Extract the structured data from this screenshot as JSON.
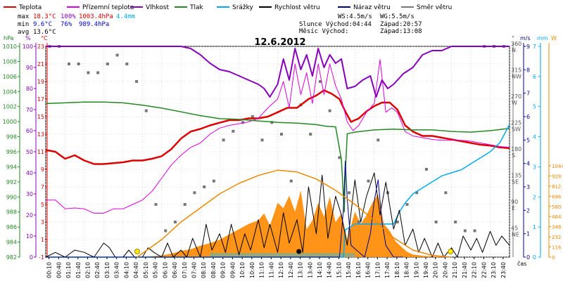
{
  "colors": {
    "temperature": "#dd0000",
    "feels_like": "#dd00dd",
    "humidity": "#8800bb",
    "pressure": "#228822",
    "rain": "#00aaee",
    "wind_speed": "#000000",
    "gust": "#000088",
    "wind_dir": "#777777",
    "sun": "#ee8800",
    "radiation_fill": "#ff8800",
    "uv_fill": "#88aa88",
    "date": "#000000"
  },
  "legend": [
    {
      "label": "Teplota",
      "color_key": "temperature"
    },
    {
      "label": "Přízemní teplota",
      "color_key": "feels_like"
    },
    {
      "label": "Vlhkost",
      "color_key": "humidity"
    },
    {
      "label": "Tlak",
      "color_key": "pressure"
    },
    {
      "label": "Srážky",
      "color_key": "rain"
    },
    {
      "label": "Rychlost větru",
      "color_key": "wind_speed"
    },
    {
      "label": "Náraz větru",
      "color_key": "gust"
    },
    {
      "label": "Směr větru",
      "color_key": "wind_dir"
    }
  ],
  "stats": {
    "max": {
      "label": "max",
      "temp": "18.3°C",
      "hum": "100%",
      "press": "1003.4hPa",
      "rain": "4.4mm"
    },
    "min": {
      "label": "min",
      "temp": "9.6°C",
      "hum": "76%",
      "press": "989.4hPa"
    },
    "avg": {
      "label": "avg",
      "temp": "13.6°C"
    }
  },
  "info": {
    "ws": "WS:4.5m/s",
    "wg": "WG:5.5m/s",
    "slunce": "Slunce Východ:04:44",
    "slunce_zapad": "Západ:20:57",
    "mesic": "Měsíc  Východ:",
    "mesic_zapad": "Západ:13:08"
  },
  "date": "12.6.2012",
  "axis_units": {
    "hpa": "hPa",
    "pct": "%",
    "degc": "°C",
    "deg": "°",
    "ms": "m/s",
    "mm": "mm",
    "wm2": "W",
    "time": "čas"
  },
  "chart_data": {
    "type": "line",
    "title": "12.6.2012",
    "xlabel": "čas",
    "x_ticks": [
      "00:10",
      "00:40",
      "01:10",
      "01:40",
      "02:10",
      "02:40",
      "03:10",
      "03:40",
      "04:10",
      "04:40",
      "05:10",
      "05:40",
      "06:10",
      "06:40",
      "07:10",
      "07:40",
      "08:10",
      "08:40",
      "09:10",
      "09:40",
      "10:10",
      "10:40",
      "11:10",
      "11:40",
      "12:10",
      "12:40",
      "13:10",
      "13:40",
      "14:10",
      "14:40",
      "15:10",
      "15:40",
      "16:10",
      "16:40",
      "17:10",
      "17:40",
      "18:10",
      "18:40",
      "19:10",
      "19:40",
      "20:10",
      "20:40",
      "21:10",
      "21:40",
      "22:10",
      "22:40",
      "23:10",
      "23:40"
    ],
    "axes": {
      "pressure_hpa": {
        "min": 982,
        "max": 1010,
        "ticks": [
          982,
          984,
          986,
          988,
          990,
          992,
          994,
          996,
          998,
          1000,
          1002,
          1004,
          1006,
          1008,
          1010
        ]
      },
      "humidity_pct": {
        "min": 0,
        "max": 100,
        "ticks": [
          0,
          10,
          20,
          30,
          40,
          50,
          60,
          70,
          80,
          90,
          100
        ]
      },
      "temperature_c": {
        "min": -1,
        "max": 23,
        "ticks": [
          -1,
          1,
          3,
          5,
          7,
          9,
          11,
          13,
          15,
          17,
          19,
          21,
          23
        ]
      },
      "wind_dir_deg": {
        "ticks": [
          {
            "v": "45",
            "n": "NE"
          },
          {
            "v": "90",
            "n": "E"
          },
          {
            "v": "135",
            "n": "SE"
          },
          {
            "v": "180",
            "n": "S"
          },
          {
            "v": "225",
            "n": "SW"
          },
          {
            "v": "270",
            "n": "W"
          },
          {
            "v": "315",
            "n": "NW"
          },
          {
            "v": "360",
            "n": "N"
          }
        ]
      },
      "wind_ms": {
        "min": 0,
        "max": 9,
        "ticks": [
          0,
          1,
          2,
          3,
          4,
          5,
          6,
          7,
          8,
          9
        ]
      },
      "rain_mm": {
        "min": 0,
        "max": 7,
        "ticks": [
          0,
          1,
          2,
          3,
          4,
          5,
          6,
          7
        ]
      },
      "radiation_wm2": {
        "ticks": [
          0,
          116,
          232,
          348,
          464,
          580,
          696,
          812,
          928,
          1044
        ]
      }
    },
    "series": [
      {
        "name": "Teplota",
        "color_key": "temperature",
        "axis": "temperature_c",
        "width": 2.5,
        "x": [
          0,
          0.5,
          1,
          1.5,
          2,
          2.5,
          3,
          3.5,
          4,
          4.5,
          5,
          5.5,
          6,
          6.5,
          7,
          7.5,
          8,
          8.5,
          9,
          9.5,
          10,
          10.5,
          11,
          11.5,
          12,
          12.5,
          13,
          13.3,
          13.6,
          14,
          14.4,
          14.8,
          15.2,
          15.5,
          15.8,
          16.2,
          16.6,
          17,
          17.4,
          17.8,
          18.2,
          18.6,
          19,
          19.5,
          20,
          20.5,
          21,
          21.5,
          22,
          22.5,
          23,
          23.5,
          24
        ],
        "y": [
          11.2,
          11,
          10.2,
          10.6,
          10,
          9.6,
          9.6,
          9.7,
          9.8,
          10,
          10,
          10.2,
          10.5,
          11.3,
          12.5,
          13.3,
          13.6,
          14,
          14.3,
          14.6,
          14.6,
          14.8,
          14.8,
          15,
          15.5,
          16,
          16,
          16.5,
          17,
          17.4,
          18,
          17.6,
          17,
          15.6,
          14.4,
          14.8,
          15.6,
          16.2,
          16.6,
          16.6,
          15.8,
          14,
          13.3,
          12.8,
          12.8,
          12.6,
          12.4,
          12.2,
          12,
          11.8,
          11.7,
          11.5,
          11.4
        ]
      },
      {
        "name": "Přízemní teplota",
        "color_key": "feels_like",
        "axis": "temperature_c",
        "width": 1,
        "x": [
          0,
          0.5,
          1,
          1.5,
          2,
          2.5,
          3,
          3.5,
          4,
          4.5,
          5,
          5.5,
          6,
          6.5,
          7,
          7.5,
          8,
          8.5,
          9,
          9.5,
          10,
          10.5,
          11,
          11.5,
          12,
          12.3,
          12.6,
          12.9,
          13.2,
          13.5,
          13.8,
          14.1,
          14.4,
          14.7,
          15,
          15.3,
          15.6,
          15.9,
          16.2,
          16.6,
          17,
          17.3,
          17.6,
          17.9,
          18.2,
          18.6,
          19,
          19.5,
          20,
          20.5,
          21,
          21.5,
          22,
          22.5,
          23,
          23.5,
          24
        ],
        "y": [
          5.5,
          5.5,
          4.5,
          4.6,
          4.5,
          4,
          4,
          4.5,
          4.5,
          5,
          5.5,
          6.5,
          8,
          9.5,
          10.6,
          11.5,
          12,
          13,
          13.7,
          14,
          14.2,
          14.4,
          14.8,
          16,
          17,
          19,
          16,
          21,
          17.5,
          20,
          16.5,
          21,
          17.5,
          21,
          18.5,
          17,
          14.4,
          13.4,
          14,
          15.5,
          16.5,
          21.5,
          15.5,
          16,
          15.5,
          13.3,
          12.8,
          12.6,
          12.4,
          12.3,
          12.3,
          12.3,
          12.2,
          12,
          11.8,
          11.6,
          11.5
        ]
      },
      {
        "name": "Vlhkost",
        "color_key": "humidity",
        "axis": "humidity_pct",
        "width": 2,
        "x": [
          0,
          1,
          2,
          3,
          4,
          5,
          6,
          7,
          7.5,
          8,
          8.5,
          9,
          9.5,
          10,
          10.5,
          11,
          11.3,
          11.6,
          12,
          12.3,
          12.6,
          12.9,
          13.2,
          13.5,
          13.8,
          14.1,
          14.4,
          14.7,
          15,
          15.3,
          15.6,
          16,
          16.4,
          16.8,
          17.1,
          17.4,
          17.7,
          18,
          18.5,
          19,
          19.5,
          20,
          20.5,
          21,
          22,
          23,
          24
        ],
        "y": [
          100,
          100,
          100,
          100,
          100,
          100,
          100,
          100,
          99,
          96,
          92,
          89,
          88,
          86,
          84,
          82,
          80,
          76,
          82,
          94,
          84,
          99,
          89,
          96,
          86,
          99,
          90,
          96,
          92,
          94,
          80,
          81,
          84,
          86,
          76,
          84,
          80,
          82,
          87,
          90,
          96,
          98,
          98,
          100,
          100,
          100,
          100
        ]
      },
      {
        "name": "Tlak",
        "color_key": "pressure",
        "axis": "pressure_hpa",
        "width": 1.5,
        "x": [
          0,
          1,
          2,
          3,
          4,
          5,
          6,
          7,
          8,
          9,
          10,
          11,
          12,
          13,
          14,
          14.5,
          15,
          15.3,
          15.45,
          15.5,
          15.6,
          15.8,
          16,
          17,
          18,
          19,
          20,
          21,
          22,
          23,
          24
        ],
        "y": [
          1002.4,
          1002.5,
          1002.6,
          1002.6,
          1002.5,
          1002.2,
          1001.8,
          1001.3,
          1000.8,
          1000.4,
          1000.3,
          1000.1,
          999.9,
          999.8,
          999.6,
          999.4,
          999.3,
          995,
          988,
          993,
          998.4,
          998.5,
          998.6,
          998.9,
          999,
          998.9,
          998.9,
          998.7,
          998.6,
          998.8,
          999.1
        ]
      },
      {
        "name": "Srážky",
        "color_key": "rain",
        "axis": "rain_mm",
        "width": 1.5,
        "x": [
          0,
          15.4,
          15.5,
          16,
          17,
          18,
          18.3,
          18.6,
          19,
          19.5,
          20,
          20.5,
          21,
          21.5,
          22,
          22.5,
          23,
          23.5,
          24
        ],
        "y": [
          0,
          0,
          0.9,
          1.1,
          1.1,
          1.1,
          1.5,
          1.8,
          2.1,
          2.3,
          2.5,
          2.7,
          2.8,
          2.9,
          3.1,
          3.3,
          3.5,
          3.8,
          4.4
        ]
      },
      {
        "name": "Rychlost větru",
        "color_key": "wind_speed",
        "axis": "wind_ms",
        "width": 1,
        "x": [
          0,
          0.5,
          1,
          1.5,
          2,
          2.5,
          3,
          3.3,
          3.6,
          4,
          4.3,
          4.6,
          5,
          5.3,
          5.6,
          6,
          6.3,
          6.6,
          7,
          7.3,
          7.6,
          8,
          8.3,
          8.6,
          9,
          9.3,
          9.6,
          10,
          10.3,
          10.6,
          11,
          11.3,
          11.6,
          12,
          12.3,
          12.6,
          13,
          13.3,
          13.6,
          14,
          14.3,
          14.6,
          15,
          15.3,
          15.6,
          16,
          16.3,
          16.6,
          17,
          17.3,
          17.6,
          18,
          18.3,
          18.6,
          19,
          19.3,
          19.6,
          20,
          20.3,
          20.6,
          21,
          21.3,
          21.6,
          22,
          22.3,
          22.6,
          23,
          23.3,
          23.6,
          24
        ],
        "y": [
          0,
          0.2,
          0,
          0.3,
          0.2,
          0,
          0.6,
          0.4,
          0,
          0,
          0.3,
          0,
          0,
          0.4,
          0.2,
          0,
          0.6,
          0,
          0.3,
          0,
          0.8,
          0,
          1.4,
          0.3,
          1.0,
          0.2,
          1.4,
          0.1,
          1.0,
          0.3,
          1.6,
          0.4,
          1.4,
          0.2,
          1.9,
          0.6,
          1.6,
          0.2,
          3.0,
          1.0,
          3.5,
          0.8,
          2.6,
          1.8,
          0.5,
          3.3,
          1.5,
          2.6,
          3.6,
          1.8,
          3.2,
          1.2,
          2.0,
          0.5,
          1.2,
          0.2,
          0.8,
          0,
          0.6,
          0,
          0.4,
          0,
          0.9,
          0.3,
          0.8,
          0.2,
          1.1,
          0.5,
          0.9,
          0.5
        ]
      },
      {
        "name": "Náraz větru",
        "color_key": "gust",
        "axis": "wind_ms",
        "width": 1,
        "x": [
          0,
          15.2,
          15.4,
          15.5,
          15.6,
          15.8,
          16.5,
          16.8,
          17,
          17.2,
          17.4,
          17.6,
          18,
          18.5
        ],
        "y": [
          0,
          0,
          2.0,
          4.1,
          2.5,
          0.5,
          0,
          1.0,
          2.4,
          3.3,
          1.5,
          0.5,
          0,
          0
        ]
      },
      {
        "name": "Sun",
        "color_key": "sun",
        "axis": "temperature_c",
        "width": 1.5,
        "x": [
          4.73,
          6,
          7,
          8,
          9,
          10,
          11,
          12,
          13,
          14,
          15,
          16,
          17,
          18,
          19,
          20,
          20.95
        ],
        "y": [
          -1,
          1,
          3,
          4.6,
          6.2,
          7.4,
          8.3,
          8.9,
          8.7,
          7.9,
          6.6,
          5,
          3.2,
          1.2,
          -0.2,
          -0.8,
          -1
        ]
      }
    ],
    "radiation": {
      "axis": "radiation_wm2",
      "x": [
        4.7,
        5.5,
        6,
        6.5,
        7,
        7.5,
        8,
        8.5,
        9,
        9.5,
        10,
        10.5,
        11,
        11.3,
        11.6,
        12,
        12.3,
        12.6,
        12.9,
        13.2,
        13.5,
        13.8,
        14.1,
        14.4,
        14.7,
        15,
        15.3,
        15.6,
        16,
        16.3,
        16.6,
        16.9,
        17.2,
        17.5,
        17.8,
        18.1,
        18.4,
        18.7,
        19,
        19.5,
        20,
        20.5,
        21
      ],
      "y": [
        0,
        10,
        20,
        40,
        70,
        90,
        130,
        160,
        200,
        260,
        320,
        380,
        420,
        500,
        360,
        620,
        560,
        700,
        520,
        760,
        320,
        420,
        620,
        460,
        690,
        400,
        500,
        200,
        520,
        380,
        480,
        620,
        720,
        380,
        300,
        180,
        120,
        60,
        30,
        15,
        8,
        4,
        0
      ]
    },
    "wind_dir_points": {
      "x": [
        0.2,
        0.7,
        1.2,
        1.7,
        2.2,
        2.7,
        3.2,
        3.7,
        4.2,
        4.7,
        5.2,
        5.7,
        6.2,
        6.7,
        7.2,
        7.7,
        8.2,
        8.7,
        9.2,
        9.7,
        10.2,
        10.7,
        11.2,
        11.7,
        12.2,
        12.7,
        13.2,
        13.7,
        14.2,
        14.7,
        15.2,
        15.7,
        16.2,
        16.7,
        17.2,
        17.7,
        18.2,
        18.7,
        19.2,
        19.7,
        20.2,
        20.7,
        21.2,
        21.7,
        22.2,
        22.7,
        23.2,
        23.7
      ],
      "y": [
        360,
        360,
        330,
        330,
        315,
        315,
        330,
        345,
        330,
        300,
        250,
        90,
        45,
        60,
        90,
        110,
        120,
        130,
        200,
        215,
        230,
        240,
        200,
        230,
        210,
        130,
        260,
        210,
        300,
        250,
        170,
        110,
        60,
        130,
        200,
        110,
        60,
        90,
        110,
        150,
        60,
        110,
        60,
        45,
        45,
        360,
        360,
        360
      ]
    }
  }
}
